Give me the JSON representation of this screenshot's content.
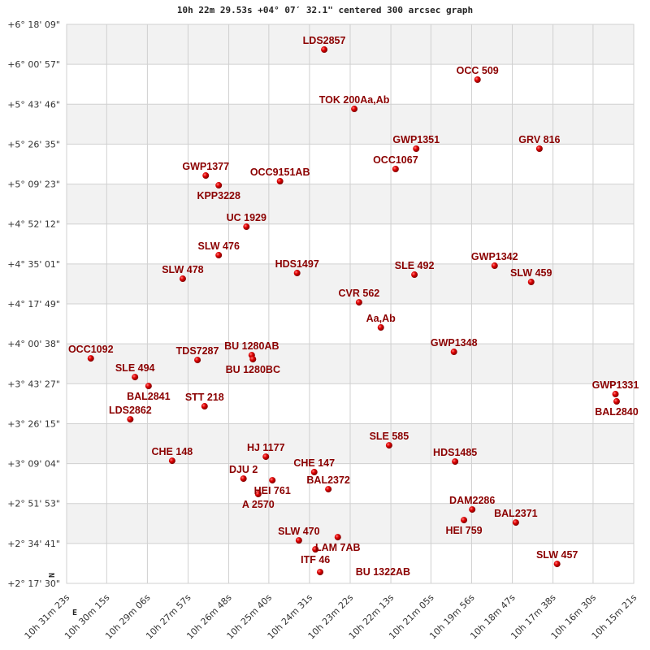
{
  "chart_data": {
    "type": "scatter",
    "title": "10h 22m 29.53s +04° 07′ 32.1\" centered 300 arcsec graph",
    "xlim": [
      "10h 31m 23s",
      "10h 15m 21s"
    ],
    "ylim": [
      "+2° 17' 30\"",
      "+6° 18' 09\""
    ],
    "grid": true,
    "x_ticks": [
      "10h 31m 23s",
      "10h 30m 15s",
      "10h 29m 06s",
      "10h 27m 57s",
      "10h 26m 48s",
      "10h 25m 40s",
      "10h 24m 31s",
      "10h 23m 22s",
      "10h 22m 13s",
      "10h 21m 05s",
      "10h 19m 56s",
      "10h 18m 47s",
      "10h 17m 38s",
      "10h 16m 30s",
      "10h 15m 21s"
    ],
    "y_ticks": [
      "+6° 18' 09\"",
      "+6° 00' 57\"",
      "+5° 43' 46\"",
      "+5° 26' 35\"",
      "+5° 09' 23\"",
      "+4° 52' 12\"",
      "+4° 35' 01\"",
      "+4° 17' 49\"",
      "+4° 00' 38\"",
      "+3° 43' 27\"",
      "+3° 26' 15\"",
      "+3° 09' 04\"",
      "+2° 51' 53\"",
      "+2° 34' 41\"",
      "+2° 17' 30\""
    ],
    "compass": {
      "north": "N",
      "east": "E"
    },
    "marker_color": "#cc0000",
    "label_color": "#8b0000",
    "points": [
      {
        "name": "LDS2857",
        "ra": "10h 24m 06s",
        "dec": "+6° 07' 18\""
      },
      {
        "name": "OCC 509",
        "ra": "10h 19m 46s",
        "dec": "+5° 54' 22\""
      },
      {
        "name": "TOK 200Aa,Ab",
        "ra": "10h 23m 15s",
        "dec": "+5° 41' 46\""
      },
      {
        "name": "GWP1351",
        "ra": "10h 21m 30s",
        "dec": "+5° 24' 38\""
      },
      {
        "name": "OCC1067",
        "ra": "10h 22m 05s",
        "dec": "+5° 15' 53\""
      },
      {
        "name": "GRV 816",
        "ra": "10h 18m 01s",
        "dec": "+5° 24' 38\""
      },
      {
        "name": "GWP1377",
        "ra": "10h 27m 27s",
        "dec": "+5° 13' 05\""
      },
      {
        "name": "KPP3228",
        "ra": "10h 27m 05s",
        "dec": "+5° 08' 53\""
      },
      {
        "name": "OCC9151AB",
        "ra": "10h 25m 21s",
        "dec": "+5° 10' 38\""
      },
      {
        "name": "UC 1929",
        "ra": "10h 26m 18s",
        "dec": "+4° 51' 02\""
      },
      {
        "name": "SLW 476",
        "ra": "10h 27m 05s",
        "dec": "+4° 38' 48\""
      },
      {
        "name": "SLW 478",
        "ra": "10h 28m 06s",
        "dec": "+4° 28' 39\""
      },
      {
        "name": "HDS1497",
        "ra": "10h 24m 52s",
        "dec": "+4° 31' 06\""
      },
      {
        "name": "SLE 492",
        "ra": "10h 21m 33s",
        "dec": "+4° 30' 24\""
      },
      {
        "name": "GWP1342",
        "ra": "10h 19m 17s",
        "dec": "+4° 34' 15\""
      },
      {
        "name": "SLW 459",
        "ra": "10h 18m 15s",
        "dec": "+4° 27' 15\""
      },
      {
        "name": "CVR 562",
        "ra": "10h 23m 07s",
        "dec": "+4° 18' 30\""
      },
      {
        "name": "Aa,Ab",
        "ra": "10h 22m 30s",
        "dec": "+4° 07' 40\""
      },
      {
        "name": "GWP1348",
        "ra": "10h 20m 26s",
        "dec": "+3° 57' 10\""
      },
      {
        "name": "OCC1092",
        "ra": "10h 30m 42s",
        "dec": "+3° 54' 22\""
      },
      {
        "name": "TDS7287",
        "ra": "10h 27m 41s",
        "dec": "+3° 53' 40\""
      },
      {
        "name": "BU 1280AB",
        "ra": "10h 26m 09s",
        "dec": "+3° 55' 46\""
      },
      {
        "name": "BU 1280BC",
        "ra": "10h 26m 07s",
        "dec": "+3° 54' 01\""
      },
      {
        "name": "SLE 494",
        "ra": "10h 29m 27s",
        "dec": "+3° 46' 19\""
      },
      {
        "name": "BAL2841",
        "ra": "10h 29m 04s",
        "dec": "+3° 42' 28\""
      },
      {
        "name": "GWP1331",
        "ra": "10h 15m 52s",
        "dec": "+3° 38' 59\""
      },
      {
        "name": "BAL2840",
        "ra": "10h 15m 50s",
        "dec": "+3° 35' 50\""
      },
      {
        "name": "STT 218",
        "ra": "10h 27m 29s",
        "dec": "+3° 33' 44\""
      },
      {
        "name": "LDS2862",
        "ra": "10h 29m 35s",
        "dec": "+3° 28' 08\""
      },
      {
        "name": "SLE 585",
        "ra": "10h 22m 16s",
        "dec": "+3° 16' 56\""
      },
      {
        "name": "CHE 148",
        "ra": "10h 28m 24s",
        "dec": "+3° 10' 17\""
      },
      {
        "name": "HDS1485",
        "ra": "10h 20m 24s",
        "dec": "+3° 09' 56\""
      },
      {
        "name": "HJ 1177",
        "ra": "10h 25m 45s",
        "dec": "+3° 12' 02\""
      },
      {
        "name": "CHE 147",
        "ra": "10h 24m 23s",
        "dec": "+3° 05' 24\""
      },
      {
        "name": "DJU 2",
        "ra": "10h 26m 23s",
        "dec": "+3° 02' 36\""
      },
      {
        "name": "HEI 761",
        "ra": "10h 25m 34s",
        "dec": "+3° 01' 54\""
      },
      {
        "name": "A 2570",
        "ra": "10h 25m 58s",
        "dec": "+2° 55' 57\""
      },
      {
        "name": "BAL2372",
        "ra": "10h 23m 59s",
        "dec": "+2° 58' 03\""
      },
      {
        "name": "DAM2286",
        "ra": "10h 19m 55s",
        "dec": "+2° 49' 18\""
      },
      {
        "name": "HEI 759",
        "ra": "10h 20m 09s",
        "dec": "+2° 44' 45\""
      },
      {
        "name": "BAL2371",
        "ra": "10h 18m 41s",
        "dec": "+2° 43' 42\""
      },
      {
        "name": "SLW 470",
        "ra": "10h 24m 49s",
        "dec": "+2° 36' 00\""
      },
      {
        "name": "LAM 7AB",
        "ra": "10h 23m 43s",
        "dec": "+2° 37' 24\""
      },
      {
        "name": "ITF 46",
        "ra": "10h 24m 21s",
        "dec": "+2° 32' 09\""
      },
      {
        "name": "BU 1322AB",
        "ra": "10h 24m 13s",
        "dec": "+2° 22' 22\""
      },
      {
        "name": "SLW 457",
        "ra": "10h 17m 31s",
        "dec": "+2° 25' 52\""
      }
    ]
  }
}
